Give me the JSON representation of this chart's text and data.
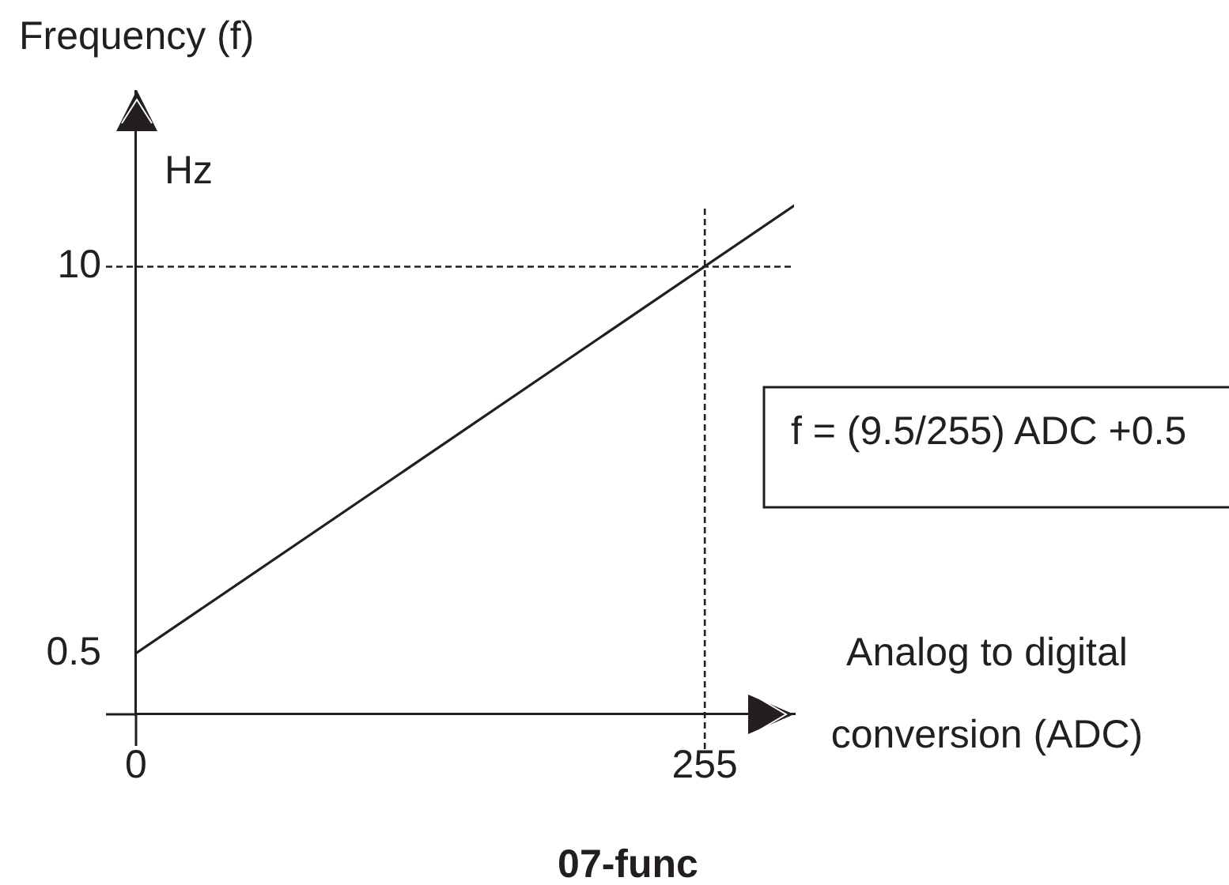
{
  "chart_data": {
    "type": "line",
    "title": "07-func",
    "xlabel": "Analog to digital conversion (ADC)",
    "ylabel": "Frequency (f)",
    "annotations": [
      "Hz",
      "f = (9.5/255) ADC +0.5"
    ],
    "x": [
      0,
      295
    ],
    "series": [
      {
        "color": "#231f20",
        "values": [
          0.5,
          11.5
        ]
      }
    ],
    "xlim": [
      0,
      295
    ],
    "ylim": [
      -1,
      14.3
    ],
    "xticks": [
      0,
      255
    ],
    "yticks": [
      0.5,
      10
    ],
    "ref_lines": [
      {
        "axis": "y",
        "value": 10,
        "color": "#231f20",
        "line_style": "dashed"
      },
      {
        "axis": "x",
        "value": 255,
        "color": "#231f20",
        "line_style": "dashed"
      }
    ]
  }
}
